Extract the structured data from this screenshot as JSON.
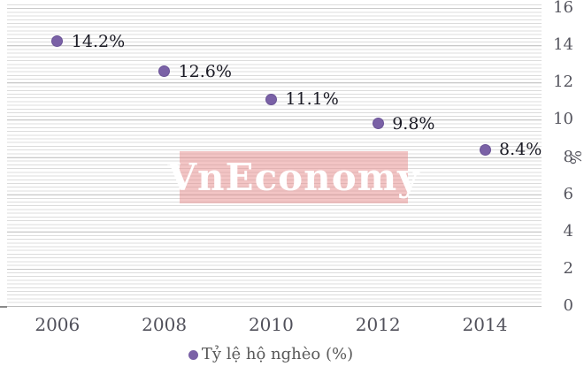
{
  "chart_data": {
    "type": "scatter",
    "title": "",
    "categories": [
      "2006",
      "2008",
      "2010",
      "2012",
      "2014"
    ],
    "series": [
      {
        "name": "Tỷ lệ hộ nghèo (%)",
        "values": [
          14.2,
          12.6,
          11.1,
          9.8,
          8.4
        ],
        "point_labels": [
          "14.2%",
          "12.6%",
          "11.1%",
          "9.8%",
          "8.4%"
        ]
      }
    ],
    "xlabel": "",
    "ylabel": "%",
    "ylim": [
      0,
      16
    ],
    "y_ticks": [
      16,
      14,
      12,
      10,
      8,
      6,
      4,
      2,
      0
    ],
    "grid": "fine horizontal minor stripes with darker major line every 2 units",
    "legend_position": "bottom",
    "axis_side": "right"
  },
  "legend": {
    "marker": "circle",
    "label": "Tỷ lệ hộ nghèo (%)"
  },
  "watermark": {
    "text": "VnEconomy",
    "bg_color": "#e58989",
    "bg_opacity": 0.5,
    "text_color": "#ffffff"
  },
  "colors": {
    "background": "#ffffff",
    "minor_gridline": "#dcdcdc",
    "major_gridline": "#c9c9c9",
    "zero_line": "#bdbdbd",
    "tick_label": "#55555e",
    "data_label": "#1a1a24",
    "marker_fill": "#7a61a6",
    "marker_border": "#6b5497"
  }
}
